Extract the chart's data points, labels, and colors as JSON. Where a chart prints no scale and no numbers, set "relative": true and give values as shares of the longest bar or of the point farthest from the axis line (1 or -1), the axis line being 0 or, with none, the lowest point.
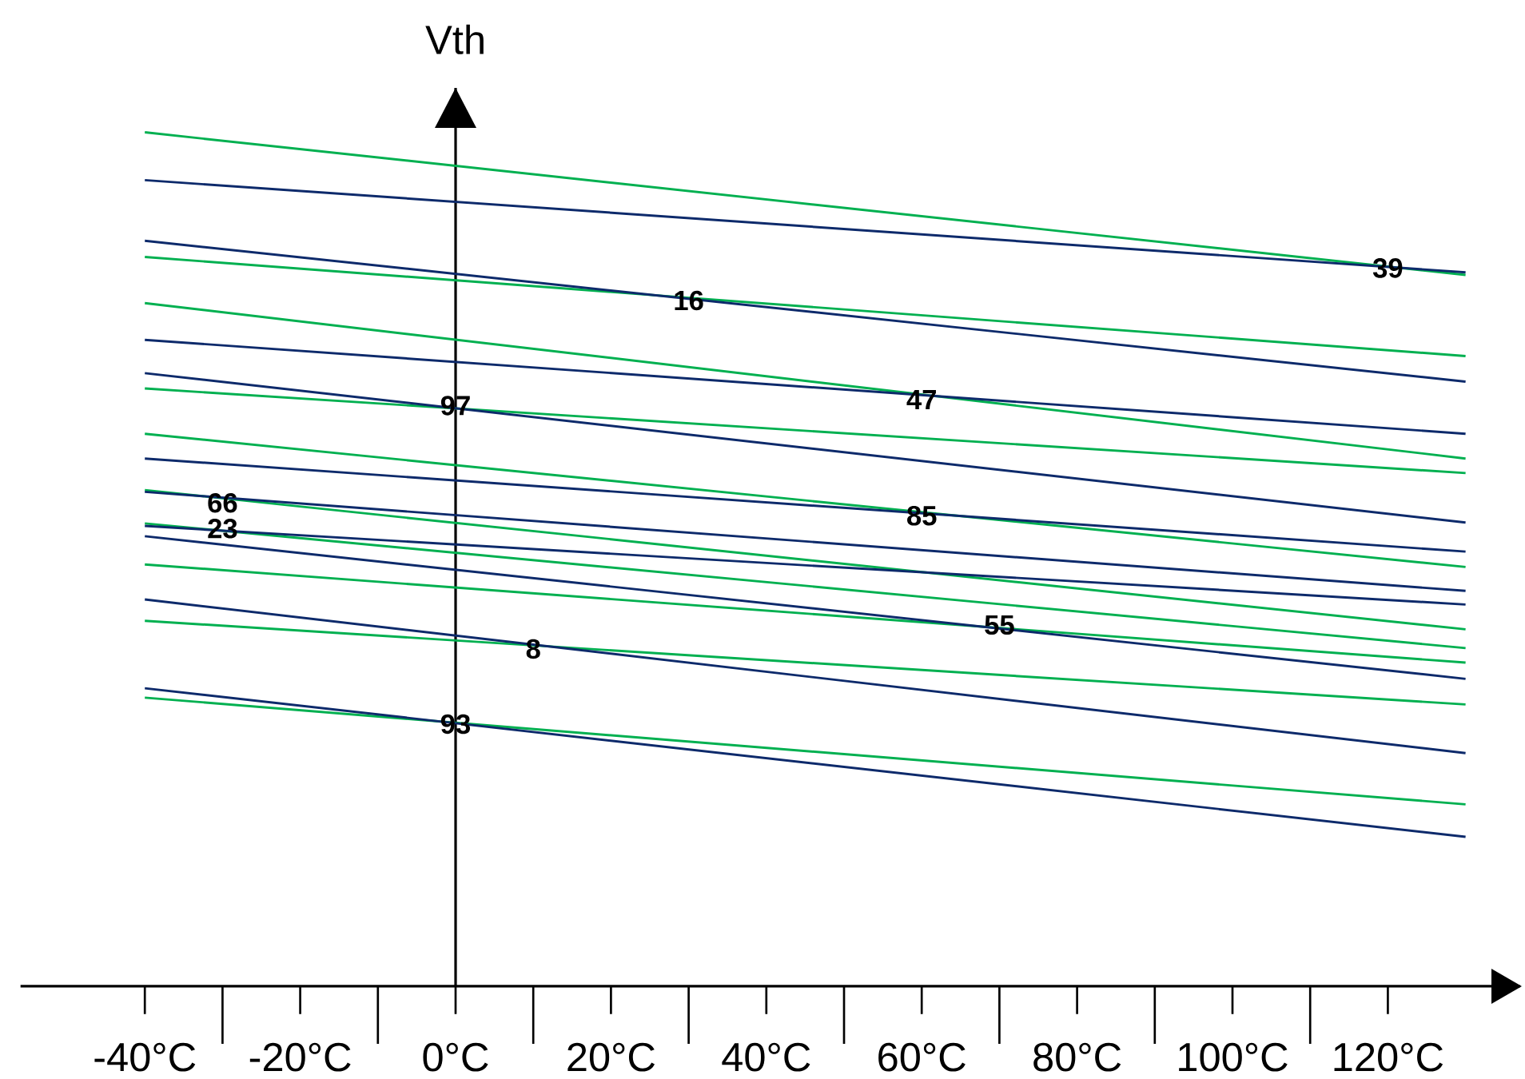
{
  "chart_data": {
    "type": "line",
    "ylabel": "Vth",
    "relative": true,
    "x": [
      -40,
      130
    ],
    "xlim": [
      -56,
      137
    ],
    "xticks": [
      {
        "value": -40,
        "label": "-40°C"
      },
      {
        "value": -20,
        "label": "-20°C"
      },
      {
        "value": 0,
        "label": "0°C"
      },
      {
        "value": 20,
        "label": "20°C"
      },
      {
        "value": 40,
        "label": "40°C"
      },
      {
        "value": 60,
        "label": "60°C"
      },
      {
        "value": 80,
        "label": "80°C"
      },
      {
        "value": 100,
        "label": "100°C"
      },
      {
        "value": 120,
        "label": "120°C"
      }
    ],
    "series": [
      {
        "color": "#00b050",
        "values": [
          1.0,
          0.833
        ]
      },
      {
        "color": "#00b050",
        "values": [
          0.854,
          0.738
        ]
      },
      {
        "color": "#00b050",
        "values": [
          0.8,
          0.618
        ]
      },
      {
        "color": "#00b050",
        "values": [
          0.7,
          0.601
        ]
      },
      {
        "color": "#00b050",
        "values": [
          0.647,
          0.491
        ]
      },
      {
        "color": "#00b050",
        "values": [
          0.581,
          0.418
        ]
      },
      {
        "color": "#00b050",
        "values": [
          0.542,
          0.396
        ]
      },
      {
        "color": "#00b050",
        "values": [
          0.494,
          0.379
        ]
      },
      {
        "color": "#00b050",
        "values": [
          0.428,
          0.33
        ]
      },
      {
        "color": "#00b050",
        "values": [
          0.338,
          0.213
        ]
      },
      {
        "color": "#0d2a6b",
        "values": [
          0.944,
          0.836
        ]
      },
      {
        "color": "#0d2a6b",
        "values": [
          0.873,
          0.708
        ]
      },
      {
        "color": "#0d2a6b",
        "values": [
          0.757,
          0.647
        ]
      },
      {
        "color": "#0d2a6b",
        "values": [
          0.718,
          0.543
        ]
      },
      {
        "color": "#0d2a6b",
        "values": [
          0.618,
          0.509
        ]
      },
      {
        "color": "#0d2a6b",
        "values": [
          0.579,
          0.463
        ]
      },
      {
        "color": "#0d2a6b",
        "values": [
          0.539,
          0.447
        ]
      },
      {
        "color": "#0d2a6b",
        "values": [
          0.527,
          0.36
        ]
      },
      {
        "color": "#0d2a6b",
        "values": [
          0.453,
          0.273
        ]
      },
      {
        "color": "#0d2a6b",
        "values": [
          0.349,
          0.175
        ]
      }
    ],
    "annotations": [
      {
        "text": "39",
        "x": 120,
        "y": 0.841
      },
      {
        "text": "16",
        "x": 30,
        "y": 0.803
      },
      {
        "text": "97",
        "x": 0,
        "y": 0.68
      },
      {
        "text": "47",
        "x": 60,
        "y": 0.687
      },
      {
        "text": "66",
        "x": -30,
        "y": 0.566
      },
      {
        "text": "23",
        "x": -30,
        "y": 0.536
      },
      {
        "text": "85",
        "x": 60,
        "y": 0.551
      },
      {
        "text": "55",
        "x": 70,
        "y": 0.423
      },
      {
        "text": "8",
        "x": 10,
        "y": 0.395
      },
      {
        "text": "93",
        "x": 0,
        "y": 0.307
      }
    ]
  }
}
